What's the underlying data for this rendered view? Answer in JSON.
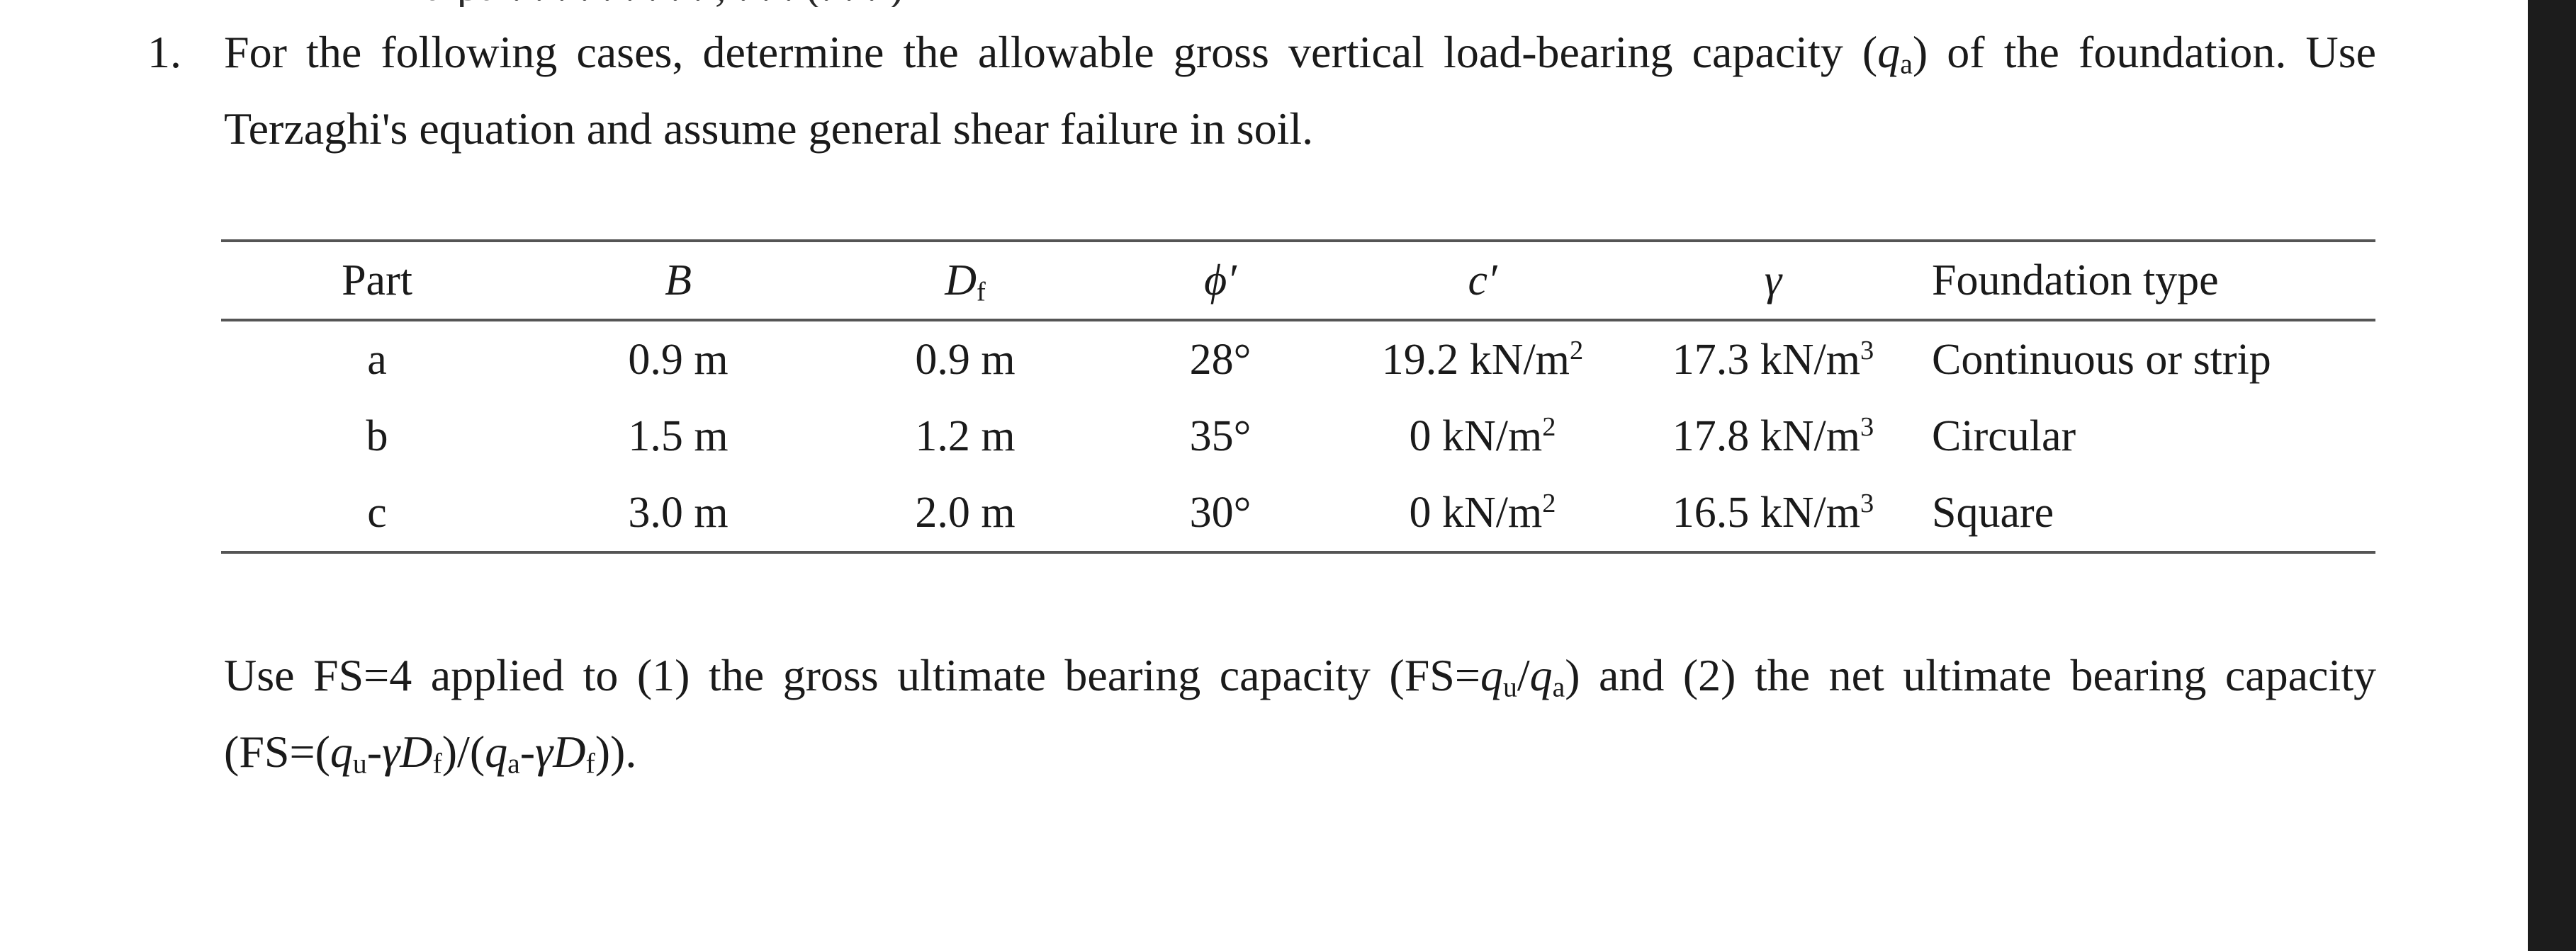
{
  "cut_off_top_text": "a pa . . . . . . . . . , . . . (. . . )",
  "question": {
    "number": "1.",
    "line1_a": "For the following cases, determine the allowable gross vertical load-bearing capacity (",
    "qa_q": "q",
    "qa_sub": "a",
    "line1_b": ") of the foundation. Use",
    "line2": "Terzaghi's equation and assume general shear failure in soil."
  },
  "table": {
    "headers": {
      "part": "Part",
      "b": "B",
      "df_main": "D",
      "df_sub": "f",
      "phi": "ϕ′",
      "c": "c′",
      "gamma": "γ",
      "type": "Foundation type"
    },
    "rows": [
      {
        "part": "a",
        "b": "0.9 m",
        "df": "0.9 m",
        "phi": "28°",
        "c": "19.2 kN/m",
        "c_exp": "2",
        "gamma": "17.3 kN/m",
        "gamma_exp": "3",
        "type": "Continuous or strip"
      },
      {
        "part": "b",
        "b": "1.5 m",
        "df": "1.2 m",
        "phi": "35°",
        "c": "0 kN/m",
        "c_exp": "2",
        "gamma": "17.8 kN/m",
        "gamma_exp": "3",
        "type": "Circular"
      },
      {
        "part": "c",
        "b": "3.0 m",
        "df": "2.0 m",
        "phi": "30°",
        "c": "0 kN/m",
        "c_exp": "2",
        "gamma": "16.5 kN/m",
        "gamma_exp": "3",
        "type": "Square"
      }
    ]
  },
  "fs_note": {
    "line1_a": "Use FS=4 applied to (1) the gross ultimate bearing capacity (FS=",
    "qu_q": "q",
    "qu_sub": "u",
    "slash": "/",
    "qa_q": "q",
    "qa_sub": "a",
    "line1_b": ") and (2) the net ultimate bearing capacity",
    "l2_open": "(FS=(",
    "l2_qu": "q",
    "l2_qu_sub": "u",
    "l2_minus1": "-",
    "l2_gamma1": "γD",
    "l2_df1_sub": "f",
    "l2_mid": ")/(",
    "l2_qa": "q",
    "l2_qa_sub": "a",
    "l2_minus2": "-",
    "l2_gamma2": "γD",
    "l2_df2_sub": "f",
    "l2_close": "))."
  },
  "colors": {
    "text": "#1a1a1a",
    "rule": "#555555",
    "scrollbar": "#1c1c1c"
  }
}
